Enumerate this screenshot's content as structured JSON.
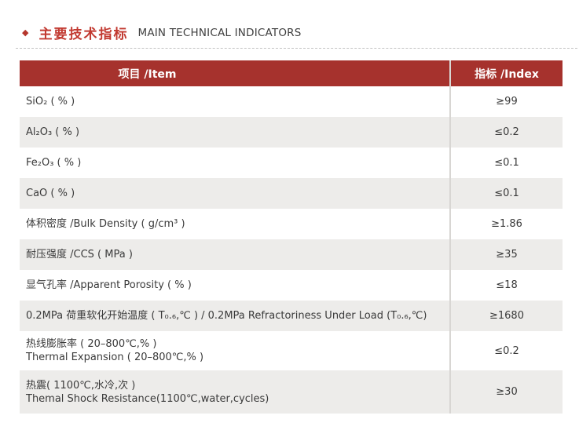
{
  "section_header": {
    "bullet": "◆",
    "title_zh": "主要技术指标",
    "title_en": "MAIN TECHNICAL INDICATORS"
  },
  "table": {
    "header": {
      "item": "项目 /Item",
      "index": "指标 /Index"
    },
    "rows": [
      {
        "lines": [
          "SiO₂ ( % )"
        ],
        "index": "≥99"
      },
      {
        "lines": [
          "Al₂O₃ ( % )"
        ],
        "index": "≤0.2"
      },
      {
        "lines": [
          "Fe₂O₃ ( % )"
        ],
        "index": "≤0.1"
      },
      {
        "lines": [
          "CaO ( % )"
        ],
        "index": "≤0.1"
      },
      {
        "lines": [
          "体积密度 /Bulk Density ( g/cm³ )"
        ],
        "index": "≥1.86"
      },
      {
        "lines": [
          "耐压强度 /CCS ( MPa )"
        ],
        "index": "≥35"
      },
      {
        "lines": [
          "显气孔率 /Apparent Porosity ( % )"
        ],
        "index": "≤18"
      },
      {
        "lines": [
          "0.2MPa 荷重软化开始温度 ( T₀.₆,℃ ) / 0.2MPa Refractoriness Under Load (T₀.₆,℃)"
        ],
        "index": "≥1680"
      },
      {
        "lines": [
          "热线膨胀率 ( 20–800℃,% )",
          "Thermal Expansion ( 20–800℃,% )"
        ],
        "index": "≤0.2"
      },
      {
        "lines": [
          "热震( 1100℃,水冷,次 )",
          "Themal Shock Resistance(1100℃,water,cycles)"
        ],
        "index": "≥30"
      }
    ]
  },
  "colors": {
    "header_bg": "#a6322d",
    "title_red": "#c23a31",
    "bullet_red": "#b5362c",
    "row_alt_bg": "#edecea",
    "divider": "#d8d6d3",
    "text": "#3a3a3a",
    "dash": "#c2c2c2"
  }
}
